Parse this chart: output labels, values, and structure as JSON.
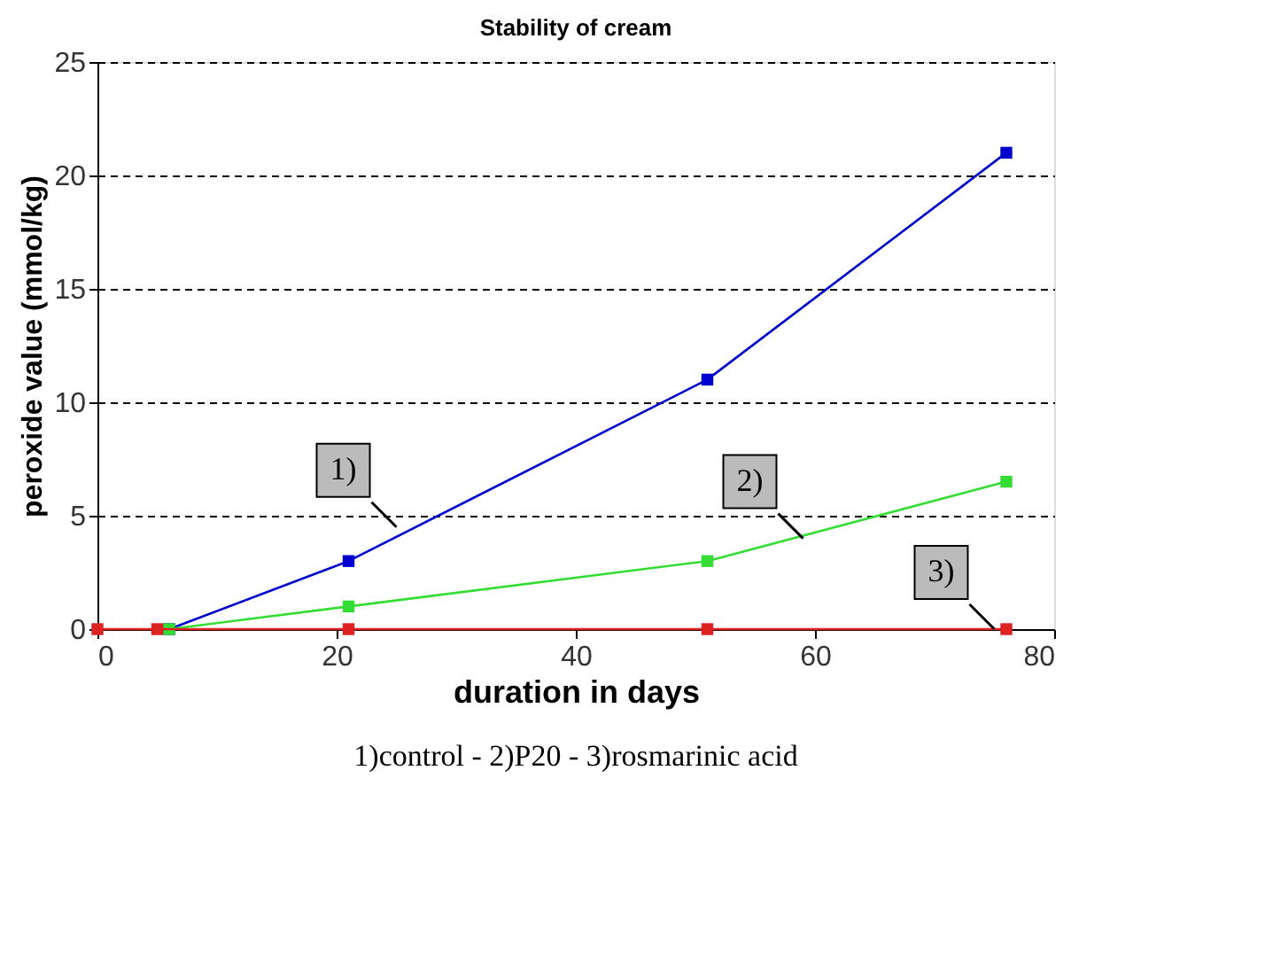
{
  "chart_data": {
    "type": "line",
    "title": "Stability of cream",
    "xlabel": "duration in days",
    "ylabel": "peroxide value (mmol/kg)",
    "series": [
      {
        "color": "#0000cc",
        "x": [
          6,
          21,
          51,
          76
        ],
        "values": [
          0,
          3,
          11,
          21
        ]
      },
      {
        "color": "#33dd33",
        "x": [
          6,
          21,
          51,
          76
        ],
        "values": [
          0,
          1,
          3,
          6.5
        ]
      },
      {
        "color": "#dd2222",
        "x": [
          0,
          5,
          21,
          51,
          76
        ],
        "values": [
          0,
          0,
          0,
          0,
          0
        ]
      }
    ],
    "xlim": [
      0,
      80
    ],
    "xticks": [
      0,
      20,
      40,
      60,
      80
    ],
    "ylim": [
      0,
      25
    ],
    "yticks": [
      0,
      5,
      10,
      15,
      20,
      25
    ],
    "grid": "y",
    "marker": "square",
    "line_style": "solid",
    "annotations": [
      {
        "text": "1)",
        "x": 25,
        "y": 4.5
      },
      {
        "text": "2)",
        "x": 59,
        "y": 4
      },
      {
        "text": "3)",
        "x": 75,
        "y": 0
      },
      "1)control - 2)P20 - 3)rosmarinic acid"
    ]
  }
}
